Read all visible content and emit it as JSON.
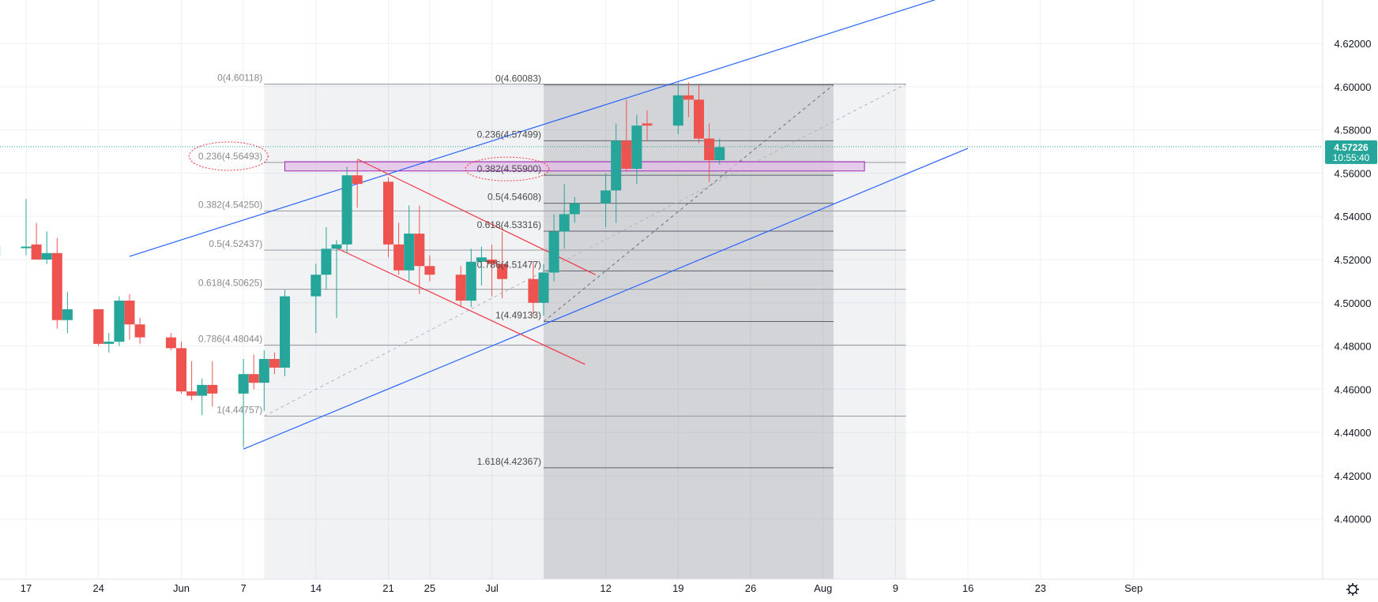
{
  "chart_data": {
    "type": "candlestick",
    "symbol_price_label": "4.57226",
    "countdown_label": "10:55:40",
    "ylim": [
      4.382,
      4.635
    ],
    "y_ticks": [
      "4.62000",
      "4.60000",
      "4.58000",
      "4.56000",
      "4.54000",
      "4.52000",
      "4.50000",
      "4.48000",
      "4.46000",
      "4.44000",
      "4.42000",
      "4.40000"
    ],
    "y_tick_values": [
      4.62,
      4.6,
      4.58,
      4.56,
      4.54,
      4.52,
      4.5,
      4.48,
      4.46,
      4.44,
      4.42,
      4.4
    ],
    "x_ticks": [
      {
        "label": "17",
        "date": "2021-05-17"
      },
      {
        "label": "24",
        "date": "2021-05-24"
      },
      {
        "label": "Jun",
        "date": "2021-06-01"
      },
      {
        "label": "7",
        "date": "2021-06-07"
      },
      {
        "label": "14",
        "date": "2021-06-14"
      },
      {
        "label": "21",
        "date": "2021-06-21"
      },
      {
        "label": "25",
        "date": "2021-06-25"
      },
      {
        "label": "Jul",
        "date": "2021-07-01"
      },
      {
        "label": "12",
        "date": "2021-07-12"
      },
      {
        "label": "19",
        "date": "2021-07-19"
      },
      {
        "label": "26",
        "date": "2021-07-26"
      },
      {
        "label": "Aug",
        "date": "2021-08-02"
      },
      {
        "label": "9",
        "date": "2021-08-09"
      },
      {
        "label": "16",
        "date": "2021-08-16"
      },
      {
        "label": "23",
        "date": "2021-08-23"
      },
      {
        "label": "Sep",
        "date": "2021-09-01"
      }
    ],
    "colors": {
      "up": "#26a69a",
      "down": "#ef5350",
      "trend": "#2962ff",
      "channel": "#f23645",
      "zone": "#e1bee7",
      "zone_border": "#9c27b0",
      "price_line": "#26a69a"
    },
    "candles": [
      {
        "date": "2021-05-13",
        "o": 4.545,
        "h": 4.555,
        "l": 4.518,
        "c": 4.522
      },
      {
        "date": "2021-05-14",
        "o": 4.522,
        "h": 4.54,
        "l": 4.52,
        "c": 4.526
      },
      {
        "date": "2021-05-17",
        "o": 4.526,
        "h": 4.548,
        "l": 4.522,
        "c": 4.526
      },
      {
        "date": "2021-05-18",
        "o": 4.527,
        "h": 4.537,
        "l": 4.52,
        "c": 4.52
      },
      {
        "date": "2021-05-19",
        "o": 4.52,
        "h": 4.533,
        "l": 4.518,
        "c": 4.523
      },
      {
        "date": "2021-05-20",
        "o": 4.523,
        "h": 4.53,
        "l": 4.488,
        "c": 4.492
      },
      {
        "date": "2021-05-21",
        "o": 4.492,
        "h": 4.505,
        "l": 4.486,
        "c": 4.497
      },
      {
        "date": "2021-05-24",
        "o": 4.497,
        "h": 4.497,
        "l": 4.48,
        "c": 4.481
      },
      {
        "date": "2021-05-25",
        "o": 4.481,
        "h": 4.486,
        "l": 4.477,
        "c": 4.482
      },
      {
        "date": "2021-05-26",
        "o": 4.482,
        "h": 4.503,
        "l": 4.48,
        "c": 4.501
      },
      {
        "date": "2021-05-27",
        "o": 4.501,
        "h": 4.504,
        "l": 4.483,
        "c": 4.49
      },
      {
        "date": "2021-05-28",
        "o": 4.49,
        "h": 4.493,
        "l": 4.481,
        "c": 4.484
      },
      {
        "date": "2021-05-31",
        "o": 4.484,
        "h": 4.486,
        "l": 4.478,
        "c": 4.479
      },
      {
        "date": "2021-06-01",
        "o": 4.479,
        "h": 4.482,
        "l": 4.458,
        "c": 4.459
      },
      {
        "date": "2021-06-02",
        "o": 4.459,
        "h": 4.473,
        "l": 4.455,
        "c": 4.457
      },
      {
        "date": "2021-06-03",
        "o": 4.457,
        "h": 4.465,
        "l": 4.448,
        "c": 4.462
      },
      {
        "date": "2021-06-04",
        "o": 4.462,
        "h": 4.473,
        "l": 4.452,
        "c": 4.458
      },
      {
        "date": "2021-06-07",
        "o": 4.458,
        "h": 4.474,
        "l": 4.433,
        "c": 4.467
      },
      {
        "date": "2021-06-08",
        "o": 4.467,
        "h": 4.476,
        "l": 4.46,
        "c": 4.463
      },
      {
        "date": "2021-06-09",
        "o": 4.463,
        "h": 4.478,
        "l": 4.45,
        "c": 4.474
      },
      {
        "date": "2021-06-10",
        "o": 4.474,
        "h": 4.477,
        "l": 4.467,
        "c": 4.47
      },
      {
        "date": "2021-06-11",
        "o": 4.47,
        "h": 4.506,
        "l": 4.466,
        "c": 4.503
      },
      {
        "date": "2021-06-14",
        "o": 4.503,
        "h": 4.518,
        "l": 4.486,
        "c": 4.513
      },
      {
        "date": "2021-06-15",
        "o": 4.513,
        "h": 4.535,
        "l": 4.506,
        "c": 4.525
      },
      {
        "date": "2021-06-16",
        "o": 4.525,
        "h": 4.529,
        "l": 4.493,
        "c": 4.527
      },
      {
        "date": "2021-06-17",
        "o": 4.527,
        "h": 4.563,
        "l": 4.523,
        "c": 4.559
      },
      {
        "date": "2021-06-18",
        "o": 4.559,
        "h": 4.566,
        "l": 4.544,
        "c": 4.555
      },
      {
        "date": "2021-06-21",
        "o": 4.556,
        "h": 4.558,
        "l": 4.521,
        "c": 4.527
      },
      {
        "date": "2021-06-22",
        "o": 4.527,
        "h": 4.537,
        "l": 4.513,
        "c": 4.515
      },
      {
        "date": "2021-06-23",
        "o": 4.515,
        "h": 4.545,
        "l": 4.51,
        "c": 4.532
      },
      {
        "date": "2021-06-24",
        "o": 4.532,
        "h": 4.545,
        "l": 4.504,
        "c": 4.517
      },
      {
        "date": "2021-06-25",
        "o": 4.517,
        "h": 4.522,
        "l": 4.51,
        "c": 4.513
      },
      {
        "date": "2021-06-28",
        "o": 4.513,
        "h": 4.517,
        "l": 4.498,
        "c": 4.501
      },
      {
        "date": "2021-06-29",
        "o": 4.501,
        "h": 4.525,
        "l": 4.498,
        "c": 4.519
      },
      {
        "date": "2021-06-30",
        "o": 4.519,
        "h": 4.526,
        "l": 4.508,
        "c": 4.521
      },
      {
        "date": "2021-07-01",
        "o": 4.52,
        "h": 4.527,
        "l": 4.503,
        "c": 4.518
      },
      {
        "date": "2021-07-02",
        "o": 4.518,
        "h": 4.533,
        "l": 4.502,
        "c": 4.511
      },
      {
        "date": "2021-07-05",
        "o": 4.511,
        "h": 4.519,
        "l": 4.494,
        "c": 4.5
      },
      {
        "date": "2021-07-06",
        "o": 4.5,
        "h": 4.518,
        "l": 4.494,
        "c": 4.514
      },
      {
        "date": "2021-07-07",
        "o": 4.514,
        "h": 4.541,
        "l": 4.51,
        "c": 4.533
      },
      {
        "date": "2021-07-08",
        "o": 4.533,
        "h": 4.555,
        "l": 4.525,
        "c": 4.541
      },
      {
        "date": "2021-07-09",
        "o": 4.541,
        "h": 4.549,
        "l": 4.537,
        "c": 4.546
      },
      {
        "date": "2021-07-12",
        "o": 4.546,
        "h": 4.56,
        "l": 4.535,
        "c": 4.552
      },
      {
        "date": "2021-07-13",
        "o": 4.552,
        "h": 4.583,
        "l": 4.537,
        "c": 4.575
      },
      {
        "date": "2021-07-14",
        "o": 4.575,
        "h": 4.594,
        "l": 4.561,
        "c": 4.562
      },
      {
        "date": "2021-07-15",
        "o": 4.562,
        "h": 4.587,
        "l": 4.555,
        "c": 4.582
      },
      {
        "date": "2021-07-16",
        "o": 4.583,
        "h": 4.589,
        "l": 4.575,
        "c": 4.582
      },
      {
        "date": "2021-07-19",
        "o": 4.582,
        "h": 4.602,
        "l": 4.578,
        "c": 4.596
      },
      {
        "date": "2021-07-20",
        "o": 4.596,
        "h": 4.602,
        "l": 4.586,
        "c": 4.594
      },
      {
        "date": "2021-07-21",
        "o": 4.594,
        "h": 4.601,
        "l": 4.574,
        "c": 4.576
      },
      {
        "date": "2021-07-22",
        "o": 4.576,
        "h": 4.583,
        "l": 4.556,
        "c": 4.566
      },
      {
        "date": "2021-07-23",
        "o": 4.566,
        "h": 4.576,
        "l": 4.564,
        "c": 4.572
      }
    ],
    "fib_left": {
      "start_date": "2021-06-09",
      "end_date": "2021-08-10",
      "levels": [
        {
          "label": "0(4.60118)",
          "value": 4.60118
        },
        {
          "label": "0.236(4.56493)",
          "value": 4.56493
        },
        {
          "label": "0.382(4.54250)",
          "value": 4.5425
        },
        {
          "label": "0.5(4.52437)",
          "value": 4.52437
        },
        {
          "label": "0.618(4.50625)",
          "value": 4.50625
        },
        {
          "label": "0.786(4.48044)",
          "value": 4.48044
        },
        {
          "label": "1(4.44757)",
          "value": 4.44757
        }
      ]
    },
    "fib_right": {
      "start_date": "2021-07-06",
      "end_date": "2021-08-03",
      "levels": [
        {
          "label": "0(4.60083)",
          "value": 4.60083
        },
        {
          "label": "0.236(4.57499)",
          "value": 4.57499
        },
        {
          "label": "0.382(4.55900)",
          "value": 4.559
        },
        {
          "label": "0.5(4.54608)",
          "value": 4.54608
        },
        {
          "label": "0.618(4.53316)",
          "value": 4.53316
        },
        {
          "label": "0.786(4.51477)",
          "value": 4.51477
        },
        {
          "label": "1(4.49133)",
          "value": 4.49133
        },
        {
          "label": "1.618(4.42367)",
          "value": 4.42367
        }
      ]
    },
    "zone": {
      "start_date": "2021-06-11",
      "end_date": "2021-08-06",
      "top": 4.5653,
      "bottom": 4.561
    },
    "trend_lines": [
      {
        "name": "upper-trend",
        "x1": "2021-05-27",
        "y1": 4.5215,
        "x2": "2021-08-13",
        "y2": 4.6405
      },
      {
        "name": "lower-trend",
        "x1": "2021-06-07",
        "y1": 4.4323,
        "x2": "2021-08-16",
        "y2": 4.5715
      }
    ],
    "channel_lines": [
      {
        "name": "channel-top",
        "x1": "2021-06-18",
        "y1": 4.5665,
        "x2": "2021-07-11",
        "y2": 4.513
      },
      {
        "name": "channel-bottom",
        "x1": "2021-06-16",
        "y1": 4.5253,
        "x2": "2021-07-10",
        "y2": 4.4715
      }
    ],
    "diagonals": [
      {
        "name": "fib-left-diagonal",
        "x1": "2021-06-09",
        "y1": 4.44757,
        "x2": "2021-08-10",
        "y2": 4.60118
      },
      {
        "name": "fib-right-diagonal",
        "x1": "2021-07-06",
        "y1": 4.49133,
        "x2": "2021-08-03",
        "y2": 4.60083
      }
    ],
    "circled_labels": [
      "0.236(4.56493)",
      "0.382(4.55900)"
    ]
  }
}
